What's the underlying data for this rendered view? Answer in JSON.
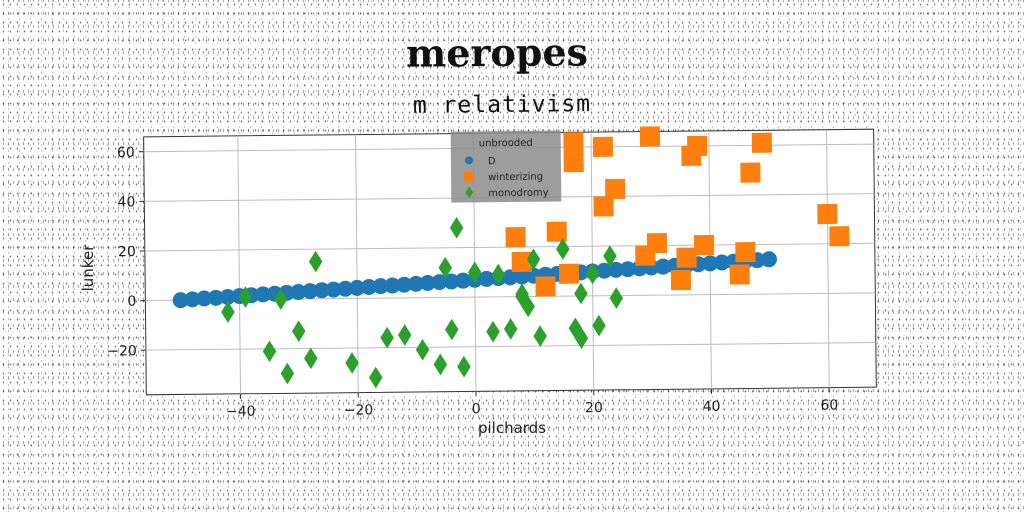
{
  "chart_data": {
    "type": "scatter",
    "title": "meropes",
    "subtitle": "m relativism",
    "xlabel": "pilchards",
    "ylabel": "lunker",
    "xlim": [
      -56,
      68
    ],
    "ylim": [
      -38,
      66
    ],
    "xticks": [
      -40,
      -20,
      0,
      20,
      40,
      60
    ],
    "yticks": [
      -20,
      0,
      20,
      40,
      60
    ],
    "grid": true,
    "legend": {
      "title": "unbrooded",
      "position": "top-center"
    },
    "series": [
      {
        "name": "D",
        "color": "#1f77b4",
        "marker": "circle",
        "x": [
          -50,
          -48,
          -46,
          -44,
          -42,
          -40,
          -38,
          -36,
          -34,
          -32,
          -30,
          -28,
          -26,
          -24,
          -22,
          -20,
          -18,
          -16,
          -14,
          -12,
          -10,
          -8,
          -6,
          -4,
          -2,
          0,
          2,
          4,
          6,
          8,
          10,
          12,
          14,
          16,
          18,
          20,
          22,
          24,
          26,
          28,
          30,
          32,
          34,
          36,
          38,
          40,
          42,
          44,
          46,
          48,
          50
        ],
        "y": [
          0.0,
          0.3,
          0.6,
          0.8,
          1.1,
          1.4,
          1.7,
          2.0,
          2.2,
          2.5,
          2.8,
          3.1,
          3.4,
          3.6,
          3.9,
          4.2,
          4.5,
          4.8,
          5.0,
          5.3,
          5.6,
          5.9,
          6.2,
          6.4,
          6.7,
          7.0,
          7.3,
          7.6,
          7.8,
          8.1,
          8.4,
          8.7,
          9.0,
          9.2,
          9.5,
          9.8,
          10.1,
          10.4,
          10.6,
          10.9,
          11.2,
          11.5,
          11.8,
          12.0,
          12.3,
          12.6,
          12.9,
          13.2,
          13.4,
          13.7,
          14.0
        ]
      },
      {
        "name": "winterizing",
        "color": "#ff7f0e",
        "marker": "square",
        "x": [
          7,
          8,
          12,
          14,
          16,
          17,
          17,
          22,
          22,
          24,
          29,
          30,
          31,
          35,
          36,
          37,
          38,
          39,
          45,
          46,
          47,
          49,
          60,
          62
        ],
        "y": [
          24,
          14,
          4,
          26,
          9,
          54,
          62,
          60,
          36,
          43,
          16,
          64,
          21,
          6,
          15,
          56,
          60,
          20,
          8,
          17,
          49,
          61,
          32,
          23
        ]
      },
      {
        "name": "monodromy",
        "color": "#2ca02c",
        "marker": "diamond",
        "x": [
          -42,
          -39,
          -35,
          -33,
          -32,
          -30,
          -28,
          -27,
          -21,
          -17,
          -15,
          -12,
          -9,
          -6,
          -5,
          -4,
          -3,
          -2,
          0,
          3,
          4,
          6,
          8,
          8,
          9,
          10,
          11,
          15,
          17,
          18,
          18,
          20,
          21,
          23,
          24
        ],
        "y": [
          -5,
          1,
          -21,
          0,
          -30,
          -13,
          -24,
          15,
          -26,
          -32,
          -16,
          -15,
          -21,
          -27,
          12,
          -13,
          28,
          -28,
          10,
          -14,
          9,
          -13,
          1,
          0,
          -4,
          15,
          -16,
          19,
          -13,
          -17,
          1,
          9,
          -12,
          16,
          -1
        ]
      }
    ]
  }
}
